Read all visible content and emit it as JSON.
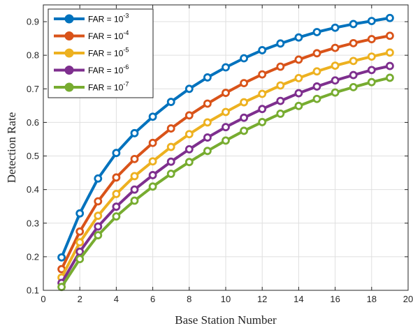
{
  "chart_data": {
    "type": "line",
    "title": "",
    "xlabel": "Base Station Number",
    "ylabel": "Detection Rate",
    "xlim": [
      0,
      20
    ],
    "ylim": [
      0.1,
      0.95
    ],
    "xticks": [
      "0",
      "2",
      "4",
      "6",
      "8",
      "10",
      "12",
      "14",
      "16",
      "18",
      "20"
    ],
    "yticks": [
      "0.1",
      "0.2",
      "0.3",
      "0.4",
      "0.5",
      "0.6",
      "0.7",
      "0.8",
      "0.9"
    ],
    "grid": true,
    "legend_position": "top-left",
    "x": [
      1,
      2,
      3,
      4,
      5,
      6,
      7,
      8,
      9,
      10,
      11,
      12,
      13,
      14,
      15,
      16,
      17,
      18,
      19
    ],
    "series": [
      {
        "name": "FAR = 10",
        "exponent": "-3",
        "color": "#0072BD",
        "values": [
          0.198,
          0.329,
          0.433,
          0.509,
          0.568,
          0.617,
          0.661,
          0.7,
          0.734,
          0.764,
          0.791,
          0.815,
          0.835,
          0.853,
          0.869,
          0.882,
          0.893,
          0.902,
          0.911
        ]
      },
      {
        "name": "FAR = 10",
        "exponent": "-4",
        "color": "#D95319",
        "values": [
          0.163,
          0.275,
          0.365,
          0.436,
          0.491,
          0.539,
          0.582,
          0.621,
          0.656,
          0.688,
          0.717,
          0.743,
          0.766,
          0.787,
          0.806,
          0.822,
          0.836,
          0.848,
          0.858
        ]
      },
      {
        "name": "FAR = 10",
        "exponent": "-5",
        "color": "#EDB120",
        "values": [
          0.138,
          0.243,
          0.322,
          0.387,
          0.44,
          0.484,
          0.527,
          0.565,
          0.6,
          0.631,
          0.66,
          0.685,
          0.71,
          0.732,
          0.752,
          0.769,
          0.783,
          0.796,
          0.808
        ]
      },
      {
        "name": "FAR = 10",
        "exponent": "-6",
        "color": "#7E2F8E",
        "values": [
          0.122,
          0.215,
          0.29,
          0.349,
          0.4,
          0.443,
          0.483,
          0.52,
          0.555,
          0.586,
          0.614,
          0.64,
          0.664,
          0.687,
          0.707,
          0.725,
          0.741,
          0.756,
          0.768
        ]
      },
      {
        "name": "FAR = 10",
        "exponent": "-7",
        "color": "#77AC30",
        "values": [
          0.11,
          0.193,
          0.264,
          0.32,
          0.367,
          0.409,
          0.447,
          0.482,
          0.515,
          0.546,
          0.575,
          0.601,
          0.626,
          0.649,
          0.67,
          0.689,
          0.705,
          0.72,
          0.733
        ]
      }
    ]
  }
}
